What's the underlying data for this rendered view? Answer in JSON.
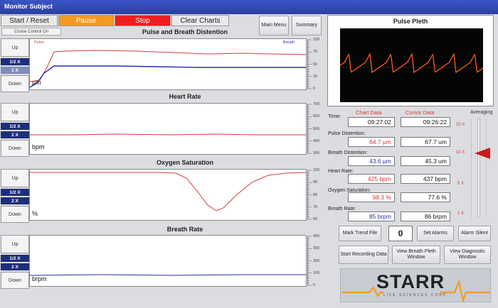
{
  "window": {
    "title": "Monitor Subject"
  },
  "toolbar": {
    "start_reset": "Start / Reset",
    "pause": "Pause",
    "stop": "Stop",
    "clear_charts": "Clear Charts",
    "main_menu": "Main Menu",
    "summary": "Summary",
    "cruise_control": "Cruise Control On"
  },
  "colors": {
    "pause": "#f39a23",
    "stop": "#ee1e1e",
    "trace_red": "#d23c3c",
    "trace_blue": "#2b2bb5",
    "pleth": "#ff5a1e"
  },
  "side": {
    "up": "Up",
    "down": "Down",
    "half": "1/2 X",
    "one": "1 X",
    "two": "2 X"
  },
  "charts": [
    {
      "title": "Pulse and Breath Distention",
      "unit": "µm",
      "legend_left": "Pulse",
      "legend_right": "Breath",
      "ticks": [
        "100",
        "75",
        "50",
        "25",
        "0"
      ]
    },
    {
      "title": "Heart Rate",
      "unit": "bpm",
      "ticks": [
        "700",
        "600",
        "500",
        "400",
        "300"
      ]
    },
    {
      "title": "Oxygen  Saturation",
      "unit": "%",
      "ticks": [
        "100",
        "90",
        "80",
        "70",
        "60"
      ]
    },
    {
      "title": "Breath Rate",
      "unit": "brpm",
      "ticks": [
        "400",
        "300",
        "200",
        "100",
        "0"
      ]
    }
  ],
  "pleth": {
    "title": "Pulse Pleth"
  },
  "readout": {
    "time_label": "Time:",
    "chart_data_label": "Chart Data",
    "cursor_data_label": "Cursor Data",
    "time_chart": "09:27:02",
    "time_cursor": "09:26:22",
    "pulse_label": "Pulse Distention:",
    "pulse_chart": "64.7 µm",
    "pulse_cursor": "67.7 um",
    "breath_label": "Breath Distention:",
    "breath_chart": "43.6 µm",
    "breath_cursor": "45.3 um",
    "hr_label": "Heart Rate:",
    "hr_chart": "425 bpm",
    "hr_cursor": "437 bpm",
    "o2_label": "Oxygen  Saturation:",
    "o2_chart": "98.3 %",
    "o2_cursor": "77.6 %",
    "br_label": "Breath Rate:",
    "br_chart": "85 brpm",
    "br_cursor": "86 brpm"
  },
  "averaging": {
    "label": "Averaging",
    "ticks": [
      "20 X",
      "10 X",
      "5 X",
      "1 X"
    ],
    "level": "10 X"
  },
  "buttons": {
    "mark_trend": "Mark Trend File",
    "counter": "0",
    "set_alarms": "Set Alarms",
    "alarm_silent": "Alarm Silent",
    "start_recording": "Start Recording Data",
    "view_breath_pleth": "View Breath Pleth Window",
    "view_diagnostic": "View Diagnostic Window"
  },
  "logo": {
    "text": "STARR",
    "sub": "LIFE SCIENCES CORP."
  }
}
